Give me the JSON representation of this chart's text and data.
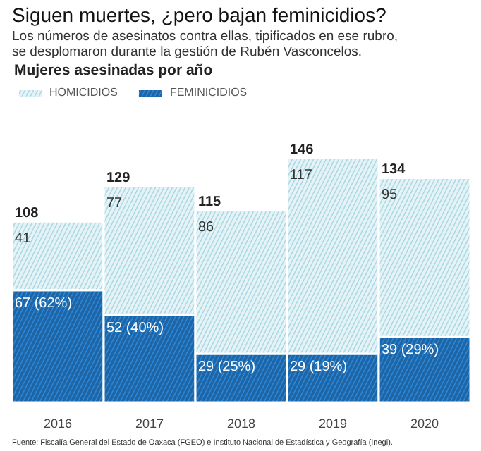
{
  "chart_data": {
    "type": "bar",
    "title": "Siguen muertes, ¿pero bajan feminicidios?",
    "subtitle": "Los números de asesinatos contra ellas, tipificados en ese rubro,\nse desplomaron durante la gestión de Rubén Vasconcelos.",
    "legend_title": "Mujeres asesinadas por año",
    "annotations": [
      "Fuente: Fiscalía General del Estado de Oaxaca (FGEO) e Instituto Nacional de Estadística y Geografía (Inegi)."
    ],
    "categories": [
      "2016",
      "2017",
      "2018",
      "2019",
      "2020"
    ],
    "stacked": true,
    "series": [
      {
        "name": "FEMINICIDIOS",
        "color": "#1f65a3",
        "values": [
          67,
          52,
          29,
          29,
          39
        ],
        "value_labels": [
          "67 (62%)",
          "52 (40%)",
          "29 (25%)",
          "29 (19%)",
          "39 (29%)"
        ]
      },
      {
        "name": "HOMICIDIOS",
        "color": "#a9d8e3",
        "values": [
          41,
          77,
          86,
          117,
          95
        ]
      }
    ],
    "data_labels": true,
    "totals": [
      "108",
      "129",
      "115",
      "146",
      "134"
    ],
    "legend": "top left",
    "grid": false
  }
}
